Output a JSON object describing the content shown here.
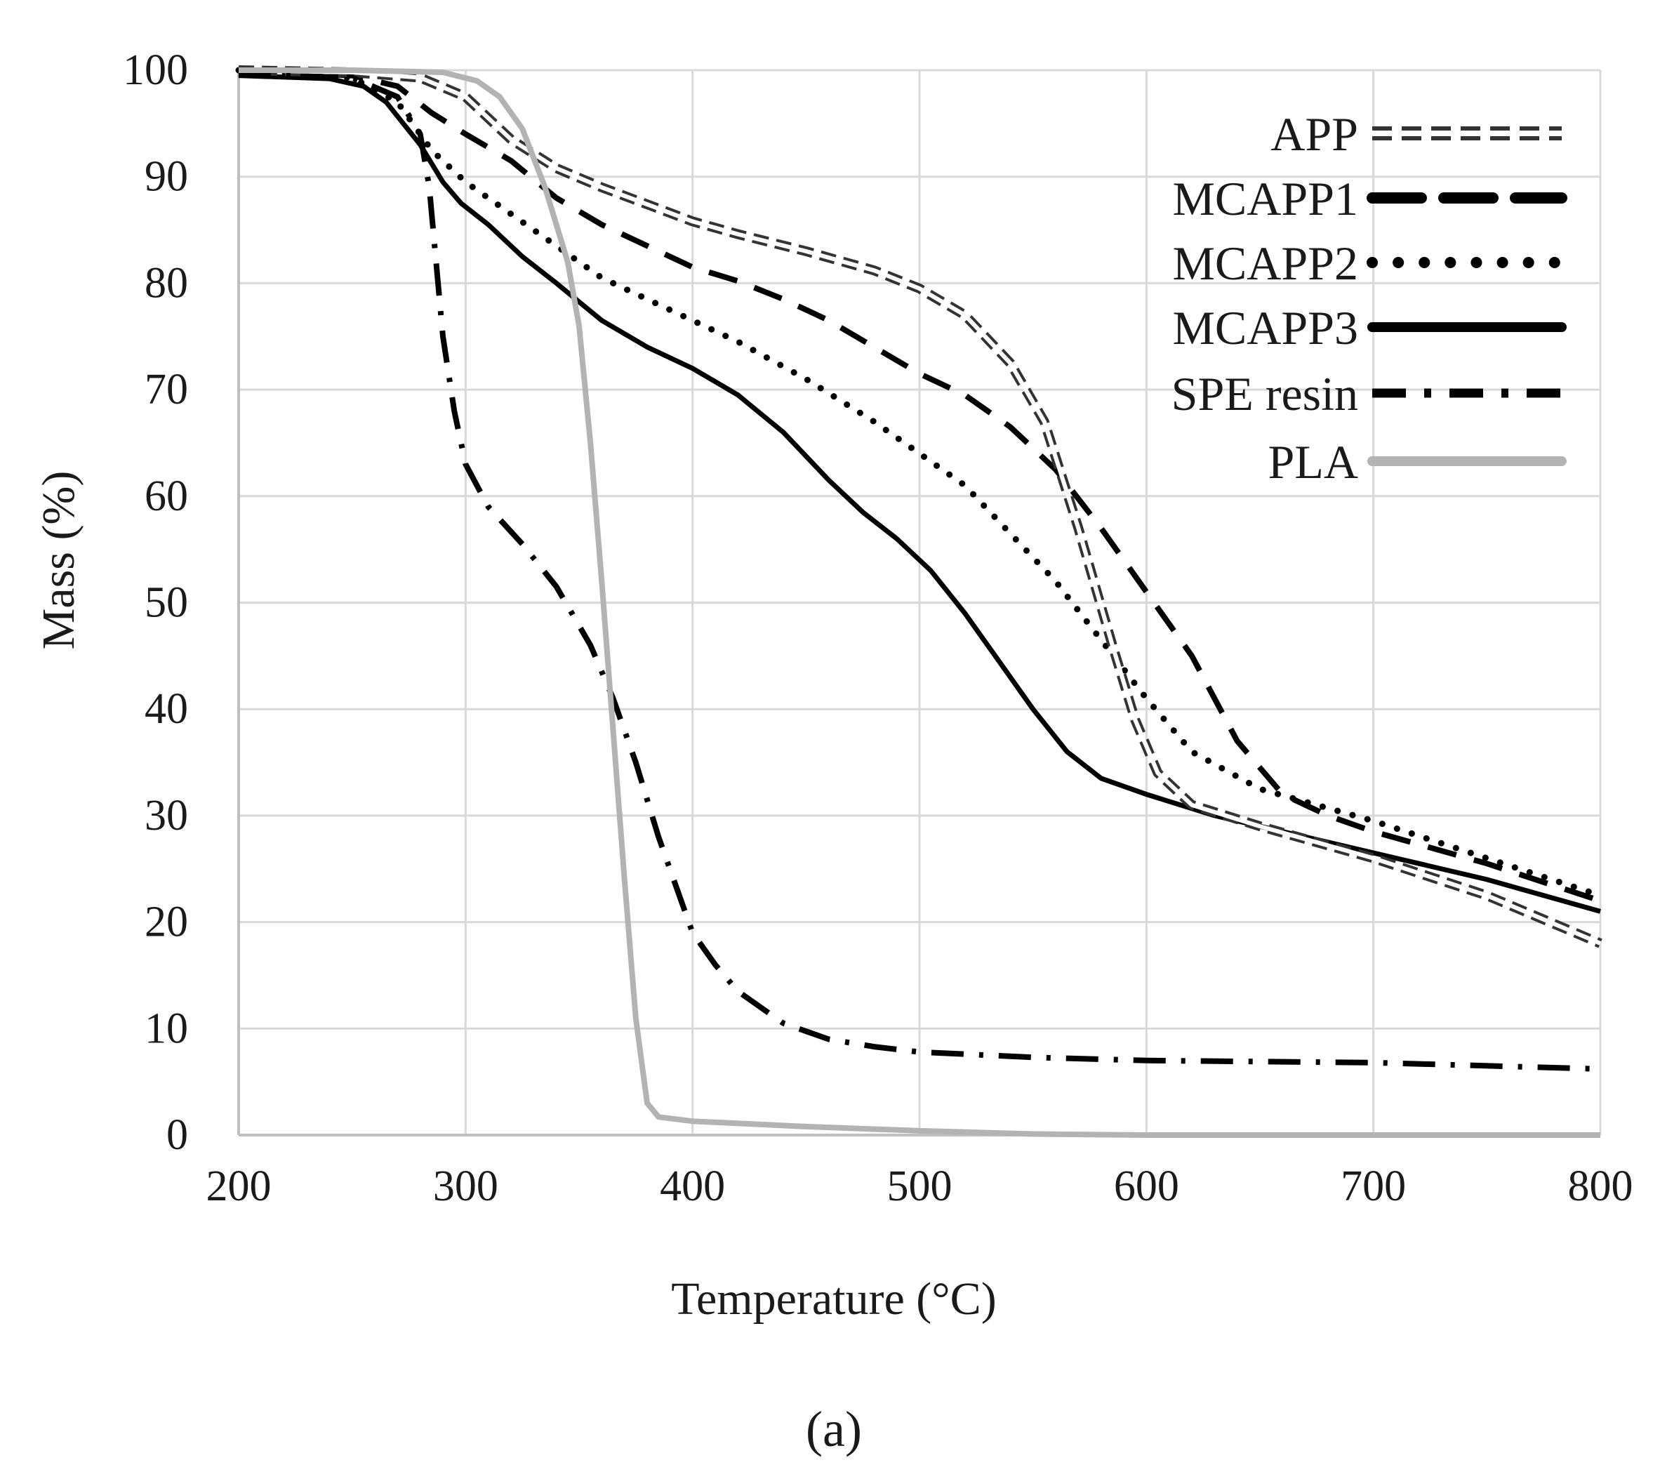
{
  "chart_data": {
    "type": "line",
    "title": "",
    "caption": "(a)",
    "xlabel": "Temperature (°C)",
    "ylabel": "Mass (%)",
    "xlim": [
      200,
      800
    ],
    "ylim": [
      0,
      100
    ],
    "xticks": [
      200,
      300,
      400,
      500,
      600,
      700,
      800
    ],
    "yticks": [
      0,
      10,
      20,
      30,
      40,
      50,
      60,
      70,
      80,
      90,
      100
    ],
    "grid": true,
    "legend_position": "top-right",
    "series": [
      {
        "name": "APP",
        "style": "double-dashed",
        "color": "#333333",
        "points": [
          [
            200,
            100
          ],
          [
            250,
            99.8
          ],
          [
            280,
            99.3
          ],
          [
            300,
            97.5
          ],
          [
            320,
            93.5
          ],
          [
            340,
            90.8
          ],
          [
            360,
            89
          ],
          [
            380,
            87.4
          ],
          [
            400,
            85.8
          ],
          [
            420,
            84.6
          ],
          [
            450,
            83
          ],
          [
            480,
            81.2
          ],
          [
            500,
            79.5
          ],
          [
            520,
            77
          ],
          [
            540,
            72.5
          ],
          [
            555,
            67
          ],
          [
            570,
            57
          ],
          [
            585,
            46
          ],
          [
            595,
            39
          ],
          [
            605,
            34
          ],
          [
            620,
            31
          ],
          [
            650,
            29
          ],
          [
            700,
            26
          ],
          [
            750,
            22.5
          ],
          [
            800,
            18
          ]
        ]
      },
      {
        "name": "MCAPP1",
        "style": "dashed",
        "color": "#000000",
        "points": [
          [
            200,
            100
          ],
          [
            250,
            99.5
          ],
          [
            270,
            98.5
          ],
          [
            285,
            96
          ],
          [
            300,
            94
          ],
          [
            320,
            91.5
          ],
          [
            340,
            88
          ],
          [
            360,
            85.5
          ],
          [
            380,
            83.5
          ],
          [
            400,
            81.5
          ],
          [
            420,
            80.2
          ],
          [
            440,
            78.5
          ],
          [
            460,
            76.5
          ],
          [
            480,
            74
          ],
          [
            500,
            71.5
          ],
          [
            520,
            69.5
          ],
          [
            540,
            66.5
          ],
          [
            560,
            62.5
          ],
          [
            580,
            57
          ],
          [
            600,
            51
          ],
          [
            620,
            45
          ],
          [
            640,
            37
          ],
          [
            660,
            32
          ],
          [
            680,
            30
          ],
          [
            700,
            28.5
          ],
          [
            750,
            25.5
          ],
          [
            800,
            22
          ]
        ]
      },
      {
        "name": "MCAPP2",
        "style": "dotted",
        "color": "#000000",
        "points": [
          [
            200,
            100
          ],
          [
            250,
            99.3
          ],
          [
            270,
            97
          ],
          [
            285,
            92.5
          ],
          [
            300,
            89.5
          ],
          [
            320,
            86.5
          ],
          [
            340,
            83.5
          ],
          [
            360,
            80.5
          ],
          [
            380,
            78.5
          ],
          [
            400,
            76.5
          ],
          [
            420,
            74.5
          ],
          [
            450,
            71
          ],
          [
            480,
            67
          ],
          [
            500,
            64
          ],
          [
            520,
            61
          ],
          [
            540,
            56.5
          ],
          [
            560,
            52
          ],
          [
            580,
            46.5
          ],
          [
            600,
            41
          ],
          [
            620,
            36
          ],
          [
            650,
            32.5
          ],
          [
            700,
            29.5
          ],
          [
            750,
            26
          ],
          [
            800,
            22.5
          ]
        ]
      },
      {
        "name": "MCAPP3",
        "style": "solid",
        "color": "#000000",
        "points": [
          [
            200,
            99.5
          ],
          [
            240,
            99.2
          ],
          [
            255,
            98.5
          ],
          [
            265,
            97
          ],
          [
            280,
            93
          ],
          [
            290,
            89.5
          ],
          [
            298,
            87.5
          ],
          [
            310,
            85.5
          ],
          [
            325,
            82.5
          ],
          [
            340,
            80
          ],
          [
            360,
            76.5
          ],
          [
            380,
            74
          ],
          [
            400,
            72
          ],
          [
            420,
            69.5
          ],
          [
            440,
            66
          ],
          [
            460,
            61.5
          ],
          [
            475,
            58.5
          ],
          [
            490,
            56
          ],
          [
            505,
            53
          ],
          [
            520,
            49
          ],
          [
            535,
            44.5
          ],
          [
            550,
            40
          ],
          [
            565,
            36
          ],
          [
            580,
            33.5
          ],
          [
            600,
            32
          ],
          [
            630,
            30
          ],
          [
            660,
            28.5
          ],
          [
            700,
            26.5
          ],
          [
            750,
            24
          ],
          [
            800,
            21
          ]
        ]
      },
      {
        "name": "SPE resin",
        "style": "dash-dot",
        "color": "#000000",
        "points": [
          [
            200,
            99.6
          ],
          [
            250,
            99.3
          ],
          [
            270,
            97.5
          ],
          [
            280,
            94
          ],
          [
            284,
            89
          ],
          [
            287,
            82
          ],
          [
            290,
            75
          ],
          [
            295,
            68
          ],
          [
            300,
            63
          ],
          [
            310,
            59
          ],
          [
            325,
            55.5
          ],
          [
            340,
            51.5
          ],
          [
            355,
            46
          ],
          [
            365,
            41
          ],
          [
            375,
            35
          ],
          [
            385,
            28
          ],
          [
            395,
            22
          ],
          [
            400,
            19
          ],
          [
            410,
            16
          ],
          [
            420,
            13.5
          ],
          [
            440,
            10.5
          ],
          [
            460,
            9
          ],
          [
            480,
            8.3
          ],
          [
            500,
            7.8
          ],
          [
            550,
            7.3
          ],
          [
            600,
            7
          ],
          [
            700,
            6.8
          ],
          [
            800,
            6.2
          ]
        ]
      },
      {
        "name": "PLA",
        "style": "solid-gray",
        "color": "#b3b3b3",
        "points": [
          [
            200,
            100
          ],
          [
            250,
            100
          ],
          [
            290,
            99.8
          ],
          [
            305,
            99
          ],
          [
            315,
            97.5
          ],
          [
            325,
            94.5
          ],
          [
            335,
            89
          ],
          [
            345,
            82
          ],
          [
            350,
            76
          ],
          [
            355,
            65
          ],
          [
            360,
            52
          ],
          [
            365,
            38
          ],
          [
            370,
            24
          ],
          [
            375,
            11
          ],
          [
            380,
            3
          ],
          [
            385,
            1.7
          ],
          [
            400,
            1.3
          ],
          [
            450,
            0.8
          ],
          [
            500,
            0.4
          ],
          [
            550,
            0.1
          ],
          [
            600,
            0
          ],
          [
            800,
            0
          ]
        ]
      }
    ]
  }
}
